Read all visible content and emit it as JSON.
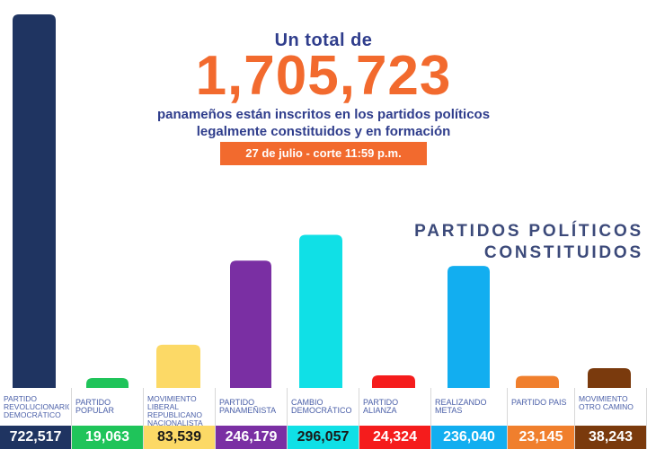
{
  "header": {
    "line1": "Un total de",
    "total": "1,705,723",
    "line2a": "panameños están inscritos en los partidos políticos",
    "line2b": "legalmente constituidos y en formación",
    "date": "27 de julio - corte 11:59 p.m."
  },
  "section_title": {
    "line1": "PARTIDOS POLÍTICOS",
    "line2": "CONSTITUIDOS"
  },
  "chart_data": {
    "type": "bar",
    "categories": [
      "PARTIDO REVOLUCIONARIO DEMOCRÁTICO",
      "PARTIDO POPULAR",
      "MOVIMIENTO LIBERAL REPUBLICANO NACIONALISTA",
      "PARTIDO PANAMEÑISTA",
      "CAMBIO DEMOCRÁTICO",
      "PARTIDO ALIANZA",
      "REALIZANDO METAS",
      "PARTIDO PAÍS",
      "MOVIMIENTO OTRO CAMINO"
    ],
    "values": [
      722517,
      19063,
      83539,
      246179,
      296057,
      24324,
      236040,
      23145,
      38243
    ],
    "value_labels": [
      "722,517",
      "19,063",
      "83,539",
      "246,179",
      "296,057",
      "24,324",
      "236,040",
      "23,145",
      "38,243"
    ],
    "colors": [
      "#1f3461",
      "#1fc45a",
      "#fcd966",
      "#7a2fa3",
      "#10e0e6",
      "#f51c1c",
      "#12aef0",
      "#f07f2d",
      "#7a3a0d"
    ],
    "value_bg": [
      "#1f3461",
      "#1fc45a",
      "#fcd966",
      "#7a2fa3",
      "#10e0e6",
      "#f51c1c",
      "#12aef0",
      "#f07f2d",
      "#7a3a0d"
    ],
    "value_text_colors": [
      "#ffffff",
      "#ffffff",
      "#1a1a1a",
      "#ffffff",
      "#1a1a1a",
      "#ffffff",
      "#ffffff",
      "#ffffff",
      "#ffffff"
    ],
    "ylim": [
      0,
      722517
    ]
  }
}
